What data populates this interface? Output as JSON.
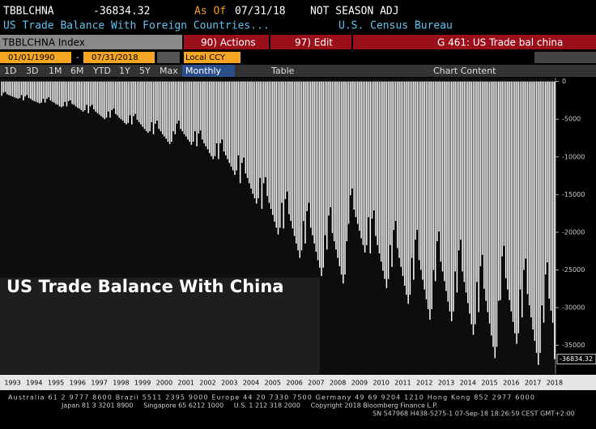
{
  "header": {
    "ticker": "TBBLCHNA",
    "last": "-36834.32",
    "as_of_label": "As Of",
    "as_of": "07/31/18",
    "adjustment": "NOT SEASON ADJ",
    "description": "US Trade Balance With Foreign Countries...",
    "source": "U.S. Census Bureau"
  },
  "toolbar": {
    "security": "TBBLCHNA Index",
    "actions": "90) Actions",
    "edit": "97) Edit",
    "function": "G 461: US Trade bal china",
    "start_date": "01/01/1990",
    "date_sep": "-",
    "end_date": "07/31/2018",
    "currency": "Local CCY",
    "periods": [
      "1D",
      "3D",
      "1M",
      "6M",
      "YTD",
      "1Y",
      "5Y",
      "Max"
    ],
    "frequency": "Monthly",
    "table": "Table",
    "chart_content": "Chart Content"
  },
  "chart_data": {
    "type": "bar",
    "title": "US Trade Balance With China",
    "color": "#ffffff",
    "categories": [
      null,
      null,
      null,
      null,
      null,
      null,
      "1993",
      null,
      null,
      null,
      null,
      null,
      null,
      null,
      null,
      null,
      null,
      null,
      "1994",
      null,
      null,
      null,
      null,
      null,
      null,
      null,
      null,
      null,
      null,
      null,
      "1995",
      null,
      null,
      null,
      null,
      null,
      null,
      null,
      null,
      null,
      null,
      null,
      "1996",
      null,
      null,
      null,
      null,
      null,
      null,
      null,
      null,
      null,
      null,
      null,
      "1997",
      null,
      null,
      null,
      null,
      null,
      null,
      null,
      null,
      null,
      null,
      null,
      "1998",
      null,
      null,
      null,
      null,
      null,
      null,
      null,
      null,
      null,
      null,
      null,
      "1999",
      null,
      null,
      null,
      null,
      null,
      null,
      null,
      null,
      null,
      null,
      null,
      "2000",
      null,
      null,
      null,
      null,
      null,
      null,
      null,
      null,
      null,
      null,
      null,
      "2001",
      null,
      null,
      null,
      null,
      null,
      null,
      null,
      null,
      null,
      null,
      null,
      "2002",
      null,
      null,
      null,
      null,
      null,
      null,
      null,
      null,
      null,
      null,
      null,
      "2003",
      null,
      null,
      null,
      null,
      null,
      null,
      null,
      null,
      null,
      null,
      null,
      "2004",
      null,
      null,
      null,
      null,
      null,
      null,
      null,
      null,
      null,
      null,
      null,
      "2005",
      null,
      null,
      null,
      null,
      null,
      null,
      null,
      null,
      null,
      null,
      null,
      "2006",
      null,
      null,
      null,
      null,
      null,
      null,
      null,
      null,
      null,
      null,
      null,
      "2007",
      null,
      null,
      null,
      null,
      null,
      null,
      null,
      null,
      null,
      null,
      null,
      "2008",
      null,
      null,
      null,
      null,
      null,
      null,
      null,
      null,
      null,
      null,
      null,
      "2009",
      null,
      null,
      null,
      null,
      null,
      null,
      null,
      null,
      null,
      null,
      null,
      "2010",
      null,
      null,
      null,
      null,
      null,
      null,
      null,
      null,
      null,
      null,
      null,
      "2011",
      null,
      null,
      null,
      null,
      null,
      null,
      null,
      null,
      null,
      null,
      null,
      "2012",
      null,
      null,
      null,
      null,
      null,
      null,
      null,
      null,
      null,
      null,
      null,
      "2013",
      null,
      null,
      null,
      null,
      null,
      null,
      null,
      null,
      null,
      null,
      null,
      "2014",
      null,
      null,
      null,
      null,
      null,
      null,
      null,
      null,
      null,
      null,
      null,
      "2015",
      null,
      null,
      null,
      null,
      null,
      null,
      null,
      null,
      null,
      null,
      null,
      "2016",
      null,
      null,
      null,
      null,
      null,
      null,
      null,
      null,
      null,
      null,
      null,
      "2017",
      null,
      null,
      null,
      null,
      null,
      null,
      null,
      null,
      null,
      null,
      null,
      "2018"
    ],
    "values": [
      -1900,
      -1500,
      -1400,
      -1700,
      -1800,
      -1900,
      -2000,
      -2100,
      -2200,
      -2300,
      -2200,
      -1800,
      -2500,
      -2000,
      -1800,
      -2200,
      -2300,
      -2500,
      -2600,
      -2700,
      -2800,
      -2900,
      -2800,
      -2300,
      -2800,
      -2300,
      -2100,
      -2500,
      -2700,
      -2800,
      -3000,
      -3100,
      -3300,
      -3400,
      -3300,
      -2700,
      -3300,
      -2600,
      -2500,
      -3000,
      -3100,
      -3300,
      -3500,
      -3600,
      -3800,
      -4000,
      -3800,
      -3100,
      -4200,
      -3300,
      -3100,
      -3700,
      -4000,
      -4200,
      -4400,
      -4600,
      -4800,
      -5000,
      -4800,
      -4000,
      -4800,
      -3800,
      -3600,
      -4300,
      -4500,
      -4800,
      -5000,
      -5200,
      -5500,
      -5700,
      -5500,
      -4500,
      -5700,
      -4600,
      -4300,
      -5100,
      -5400,
      -5700,
      -6000,
      -6300,
      -6600,
      -6800,
      -6600,
      -5400,
      -7000,
      -5600,
      -5200,
      -6300,
      -6600,
      -7000,
      -7300,
      -7600,
      -8000,
      -8300,
      -8000,
      -6600,
      -7000,
      -5600,
      -5200,
      -6300,
      -6600,
      -7000,
      -7300,
      -7700,
      -8000,
      -8400,
      -8000,
      -6600,
      -8600,
      -6900,
      -6500,
      -7700,
      -8200,
      -8600,
      -9000,
      -9500,
      -9900,
      -10300,
      -9900,
      -8200,
      -10300,
      -8200,
      -7700,
      -9300,
      -9800,
      -10300,
      -10800,
      -11300,
      -11800,
      -12400,
      -11800,
      -9800,
      -13500,
      -10800,
      -10100,
      -12200,
      -12800,
      -13500,
      -14200,
      -14900,
      -15500,
      -16200,
      -15500,
      -12800,
      -16900,
      -13500,
      -12700,
      -15200,
      -16100,
      -16900,
      -17700,
      -18600,
      -19400,
      -20300,
      -19400,
      -16100,
      -19500,
      -15600,
      -14600,
      -17600,
      -18500,
      -19500,
      -20500,
      -21500,
      -22400,
      -23400,
      -22400,
      -18500,
      -21500,
      -17200,
      -16100,
      -19400,
      -20400,
      -21500,
      -22600,
      -23700,
      -24700,
      -25800,
      -24700,
      -20400,
      -22300,
      -17800,
      -16700,
      -20100,
      -21200,
      -22300,
      -23400,
      -24500,
      -25600,
      -26800,
      -25600,
      -21200,
      -18900,
      -15100,
      -14200,
      -17000,
      -18000,
      -18900,
      -19800,
      -20800,
      -21700,
      -22700,
      -21700,
      -18000,
      -22800,
      -18200,
      -17100,
      -20500,
      -21700,
      -22800,
      -23900,
      -25100,
      -26200,
      -27400,
      -26200,
      -21700,
      -24600,
      -19700,
      -18500,
      -22100,
      -23400,
      -24600,
      -25800,
      -27100,
      -28300,
      -29500,
      -28300,
      -23400,
      -26300,
      -21000,
      -19700,
      -23700,
      -25000,
      -26300,
      -27600,
      -28900,
      -30200,
      -31600,
      -30200,
      -25000,
      -26500,
      -21200,
      -19900,
      -23900,
      -25200,
      -26500,
      -27800,
      -29200,
      -30500,
      -31800,
      -30500,
      -25200,
      -28000,
      -22400,
      -21000,
      -25200,
      -26600,
      -28000,
      -29400,
      -30800,
      -32200,
      -33600,
      -32200,
      -26600,
      -30600,
      -24500,
      -23000,
      -27500,
      -29100,
      -30600,
      -32100,
      -33700,
      -35200,
      -36700,
      -35200,
      -29100,
      -29000,
      -23200,
      -21800,
      -26100,
      -27600,
      -29000,
      -30500,
      -31900,
      -33400,
      -34800,
      -33400,
      -27600,
      -31300,
      -25000,
      -23500,
      -28200,
      -29700,
      -31300,
      -32900,
      -34400,
      -36000,
      -37600,
      -36000,
      -29700,
      -32000,
      -25600,
      -24000,
      -28800,
      -30400,
      -32000,
      -36834.32
    ],
    "ylim": [
      -38800,
      500
    ],
    "yticks": [
      0,
      -5000,
      -10000,
      -15000,
      -20000,
      -25000,
      -30000,
      -35000
    ]
  },
  "footer": {
    "line1": "Australia 61 2 9777 8600 Brazil 5511 2395 9000 Europe 44 20 7330 7500 Germany 49 69 9204 1210 Hong Kong 852 2977 6000",
    "line2": "Japan 81 3 3201 8900     Singapore 65 6212 1000     U.S. 1 212 318 2000     Copyright 2018 Bloomberg Finance L.P.",
    "line3": "SN 547968 H438-5275-1 07-Sep-18 18:26:59 CEST GMT+2:00"
  }
}
